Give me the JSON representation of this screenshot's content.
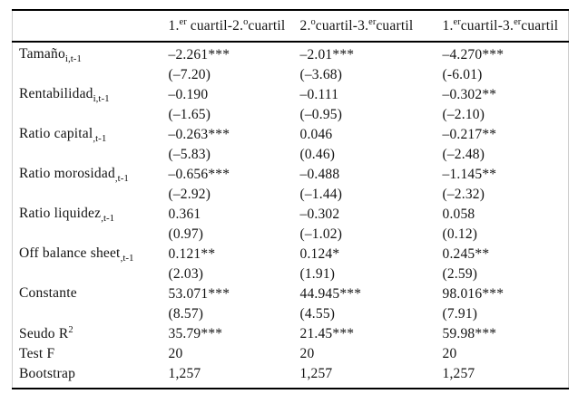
{
  "table": {
    "headers": [
      {
        "seg1": "1.",
        "sup1": "er",
        "seg2": " cuartil-2.",
        "sup2": "o",
        "seg3": "cuartil"
      },
      {
        "seg1": "2.",
        "sup1": "o",
        "seg2": "cuartil-3.",
        "sup2": "er",
        "seg3": "cuartil"
      },
      {
        "seg1": "1.",
        "sup1": "er",
        "seg2": "cuartil-3.",
        "sup2": "er",
        "seg3": "cuartil"
      }
    ],
    "rows": [
      {
        "label": "Tamaño",
        "sub": "i,t-1",
        "coef": [
          "–2.261***",
          "–2.01***",
          "–4.270***"
        ],
        "tstat": [
          "(–7.20)",
          "(–3.68)",
          "(-6.01)"
        ]
      },
      {
        "label": "Rentabilidad",
        "sub": "i,t-1",
        "coef": [
          "–0.190",
          "–0.111",
          "–0.302**"
        ],
        "tstat": [
          "(–1.65)",
          "(–0.95)",
          "(–2.10)"
        ]
      },
      {
        "label": "Ratio capital",
        "sub": ",t-1",
        "coef": [
          "–0.263***",
          "0.046",
          "–0.217**"
        ],
        "tstat": [
          "(–5.83)",
          "(0.46)",
          "(–2.48)"
        ]
      },
      {
        "label": "Ratio morosidad",
        "sub": ",t-1",
        "coef": [
          "–0.656***",
          "–0.488",
          "–1.145**"
        ],
        "tstat": [
          "(–2.92)",
          "(–1.44)",
          "(–2.32)"
        ]
      },
      {
        "label": "Ratio liquidez",
        "sub": ",t-1",
        "coef": [
          "0.361",
          "–0.302",
          "0.058"
        ],
        "tstat": [
          "(0.97)",
          "(–1.02)",
          "(0.12)"
        ]
      },
      {
        "label": "Off balance sheet",
        "sub": ",t-1",
        "coef": [
          "0.121**",
          "0.124*",
          "0.245**"
        ],
        "tstat": [
          "(2.03)",
          "(1.91)",
          "(2.59)"
        ]
      },
      {
        "label": "Constante",
        "sub": "",
        "coef": [
          "53.071***",
          "44.945***",
          "98.016***"
        ],
        "tstat": [
          "(8.57)",
          "(4.55)",
          "(7.91)"
        ]
      }
    ],
    "stats": [
      {
        "label": "Seudo R",
        "sup": "2",
        "values": [
          "35.79***",
          "21.45***",
          "59.98***"
        ]
      },
      {
        "label": "Test F",
        "sup": "",
        "values": [
          "20",
          "20",
          "20"
        ]
      },
      {
        "label": "Bootstrap",
        "sup": "",
        "values": [
          "1,257",
          "1,257",
          "1,257"
        ]
      }
    ]
  }
}
